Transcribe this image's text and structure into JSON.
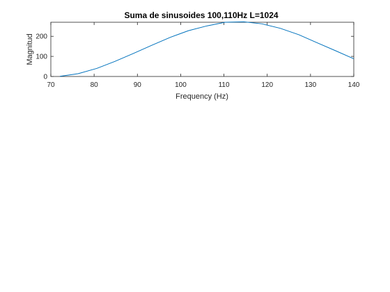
{
  "chart_data": {
    "type": "line",
    "title": "Suma de sinusoides 100,110Hz L=1024",
    "xlabel": "Frequency (Hz)",
    "ylabel": "Magnitud",
    "xlim": [
      70,
      140
    ],
    "ylim": [
      0,
      270
    ],
    "xticks": [
      70,
      80,
      90,
      100,
      110,
      120,
      130,
      140
    ],
    "yticks": [
      0,
      100,
      200
    ],
    "grid": false,
    "line_color": "#0072BD",
    "series": [
      {
        "x": [
          72.1,
          76.3,
          80.6,
          84.8,
          89.1,
          93.3,
          97.6,
          101.8,
          106.1,
          110.3,
          114.6,
          118.8,
          123.0,
          127.3,
          131.5,
          135.8,
          140.0
        ],
        "y": [
          1,
          14,
          40,
          75,
          115,
          155,
          195,
          228,
          252,
          270,
          272,
          262,
          240,
          208,
          168,
          128,
          88
        ]
      }
    ]
  }
}
